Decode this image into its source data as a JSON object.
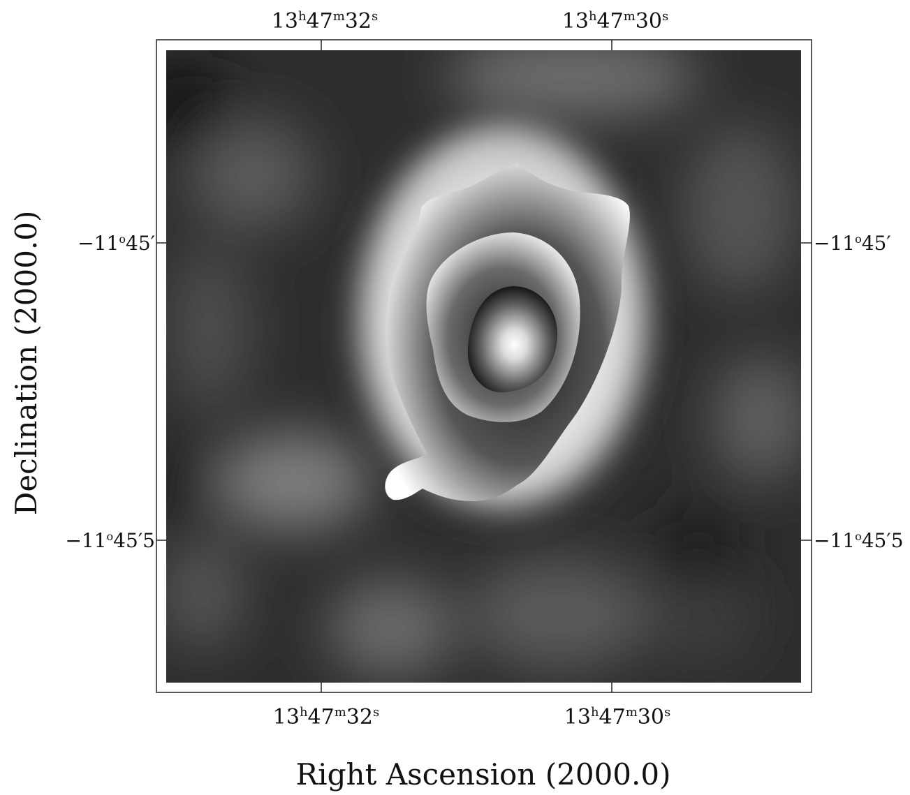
{
  "figure": {
    "xlabel": "Right Ascension (2000.0)",
    "ylabel": "Declination (2000.0)",
    "x_ticks": [
      {
        "h": "13",
        "m": "47",
        "s": "32"
      },
      {
        "h": "13",
        "m": "47",
        "s": "30"
      }
    ],
    "y_ticks": [
      {
        "deg": "−11",
        "min": "45",
        "sec": ""
      },
      {
        "deg": "−11",
        "min": "45",
        "sec": "5"
      }
    ],
    "units": {
      "h": "h",
      "m": "m",
      "s": "s",
      "deg": "o",
      "prime": "′"
    },
    "colormap": {
      "low": "#000000",
      "high": "#ffffff"
    },
    "contours": 3
  }
}
